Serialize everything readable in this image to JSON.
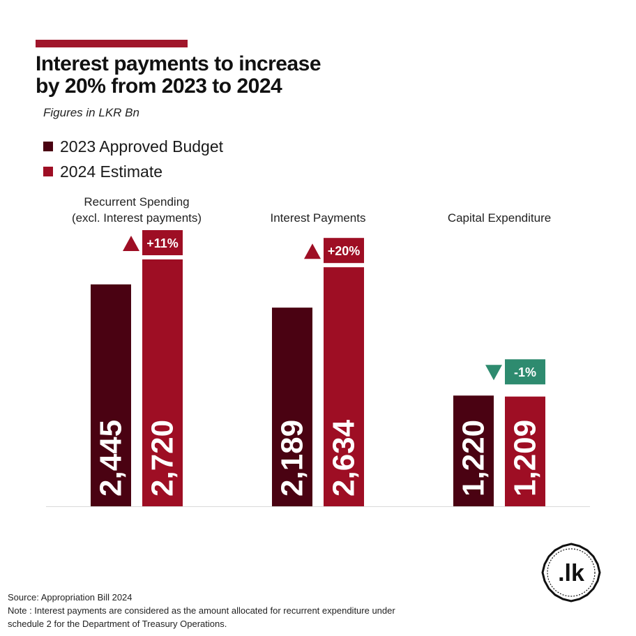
{
  "header": {
    "title_line1": "Interest payments to increase",
    "title_line2": "by 20% from 2023 to 2024",
    "subtitle": "Figures in LKR Bn"
  },
  "legend": [
    {
      "label": "2023 Approved Budget",
      "color": "#4a0212"
    },
    {
      "label": "2024 Estimate",
      "color": "#9e0e24"
    }
  ],
  "chart_data": {
    "type": "bar",
    "categories": [
      [
        "Recurrent Spending",
        "(excl. Interest payments)"
      ],
      [
        "Interest Payments"
      ],
      [
        "Capital Expenditure"
      ]
    ],
    "series": [
      {
        "name": "2023 Approved Budget",
        "values": [
          2445,
          2189,
          1220
        ],
        "labels": [
          "2,445",
          "2,189",
          "1,220"
        ]
      },
      {
        "name": "2024 Estimate",
        "values": [
          2720,
          2634,
          1209
        ],
        "labels": [
          "2,720",
          "2,634",
          "1,209"
        ]
      }
    ],
    "changes": [
      {
        "text": "+11%",
        "direction": "up",
        "color": "#9e0e24"
      },
      {
        "text": "+20%",
        "direction": "up",
        "color": "#9e0e24"
      },
      {
        "text": "-1%",
        "direction": "down",
        "color": "#2e8b6f"
      }
    ],
    "ylim": [
      0,
      2720
    ],
    "grid": false,
    "legend_position": "top-left"
  },
  "footer": {
    "source": "Source: Appropriation Bill 2024",
    "note_line1": "Note : Interest payments are considered as the amount allocated for recurrent expenditure under",
    "note_line2": "schedule 2 for the Department of Treasury Operations."
  },
  "logo": {
    "text": ".lk"
  }
}
